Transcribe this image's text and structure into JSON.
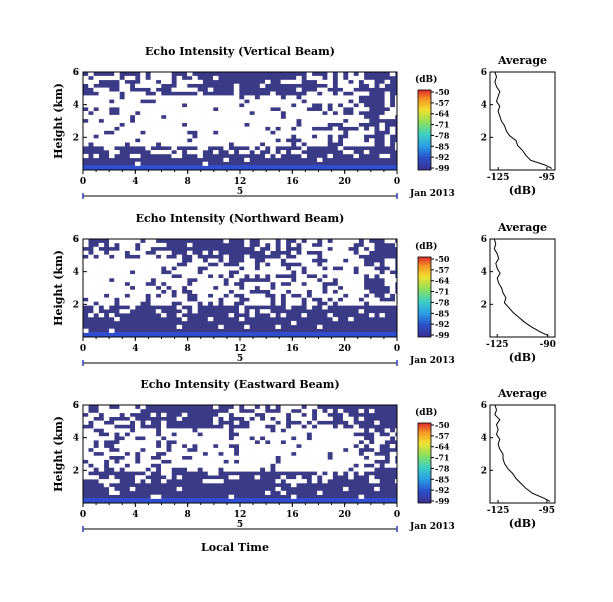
{
  "chart_data": [
    {
      "type": "heatmap",
      "title": "Echo Intensity (Vertical Beam)",
      "ylabel": "Height (km)",
      "yticks": [
        "2",
        "4",
        "6"
      ],
      "ylim": [
        0,
        6
      ],
      "xticks": [
        "0",
        "4",
        "8",
        "12",
        "16",
        "20",
        "0"
      ],
      "xlim": [
        0,
        24
      ],
      "date_label": "5",
      "month_label": "Jan 2013",
      "colorbar": {
        "unit": "(dB)",
        "ticks": [
          "-50",
          "-57",
          "-64",
          "-71",
          "-78",
          "-85",
          "-92",
          "-99"
        ]
      },
      "noise_low_km": 1.2,
      "noise_high_km": 4.8,
      "avg_profile": {
        "title": "Average",
        "xlabel": "(dB)",
        "xticks": [
          "-125",
          "-95"
        ],
        "xlim": [
          -130,
          -90
        ],
        "yticks": [
          "2",
          "4",
          "6"
        ],
        "ylim": [
          0,
          6
        ],
        "height_km": [
          0.1,
          0.3,
          0.6,
          0.9,
          1.2,
          1.5,
          1.8,
          2.1,
          2.4,
          2.7,
          3.0,
          3.3,
          3.6,
          3.9,
          4.2,
          4.5,
          4.8,
          5.1,
          5.4,
          5.7,
          6.0
        ],
        "values_db": [
          -92,
          -96,
          -105,
          -108,
          -110,
          -113,
          -114,
          -118,
          -120,
          -121,
          -123,
          -124,
          -125,
          -124,
          -126,
          -125,
          -124,
          -126,
          -127,
          -126,
          -127
        ]
      }
    },
    {
      "type": "heatmap",
      "title": "Echo Intensity (Northward Beam)",
      "ylabel": "Height (km)",
      "yticks": [
        "2",
        "4",
        "6"
      ],
      "ylim": [
        0,
        6
      ],
      "xticks": [
        "0",
        "4",
        "8",
        "12",
        "16",
        "20",
        "0"
      ],
      "xlim": [
        0,
        24
      ],
      "date_label": "5",
      "month_label": "Jan 2013",
      "colorbar": {
        "unit": "(dB)",
        "ticks": [
          "-50",
          "-57",
          "-64",
          "-71",
          "-78",
          "-85",
          "-92",
          "-99"
        ]
      },
      "noise_low_km": 1.8,
      "noise_high_km": 5.0,
      "avg_profile": {
        "title": "Average",
        "xlabel": "(dB)",
        "xticks": [
          "-125",
          "-90"
        ],
        "xlim": [
          -130,
          -85
        ],
        "yticks": [
          "2",
          "4",
          "6"
        ],
        "ylim": [
          0,
          6
        ],
        "height_km": [
          0.1,
          0.3,
          0.6,
          0.9,
          1.2,
          1.5,
          1.8,
          2.1,
          2.4,
          2.7,
          3.0,
          3.3,
          3.6,
          3.9,
          4.2,
          4.5,
          4.8,
          5.1,
          5.4,
          5.7,
          6.0
        ],
        "values_db": [
          -90,
          -95,
          -101,
          -106,
          -110,
          -114,
          -117,
          -120,
          -119,
          -121,
          -122,
          -124,
          -125,
          -123,
          -125,
          -126,
          -124,
          -125,
          -127,
          -126,
          -127
        ]
      }
    },
    {
      "type": "heatmap",
      "title": "Echo Intensity (Eastward Beam)",
      "ylabel": "Height (km)",
      "yticks": [
        "2",
        "4",
        "6"
      ],
      "ylim": [
        0,
        6
      ],
      "xticks": [
        "0",
        "4",
        "8",
        "12",
        "16",
        "20",
        "0"
      ],
      "xlim": [
        0,
        24
      ],
      "date_label": "5",
      "month_label": "Jan 2013",
      "xlabel": "Local Time",
      "colorbar": {
        "unit": "(dB)",
        "ticks": [
          "-50",
          "-57",
          "-64",
          "-71",
          "-78",
          "-85",
          "-92",
          "-99"
        ]
      },
      "noise_low_km": 1.6,
      "noise_high_km": 4.6,
      "avg_profile": {
        "title": "Average",
        "xlabel": "(dB)",
        "xticks": [
          "-125",
          "-95"
        ],
        "xlim": [
          -130,
          -90
        ],
        "yticks": [
          "2",
          "4",
          "6"
        ],
        "ylim": [
          0,
          6
        ],
        "height_km": [
          0.1,
          0.3,
          0.6,
          0.9,
          1.2,
          1.5,
          1.8,
          2.1,
          2.4,
          2.7,
          3.0,
          3.3,
          3.6,
          3.9,
          4.2,
          4.5,
          4.8,
          5.1,
          5.4,
          5.7,
          6.0
        ],
        "values_db": [
          -93,
          -97,
          -104,
          -108,
          -111,
          -114,
          -116,
          -119,
          -121,
          -122,
          -122,
          -124,
          -125,
          -124,
          -126,
          -125,
          -126,
          -124,
          -127,
          -126,
          -127
        ]
      }
    }
  ]
}
